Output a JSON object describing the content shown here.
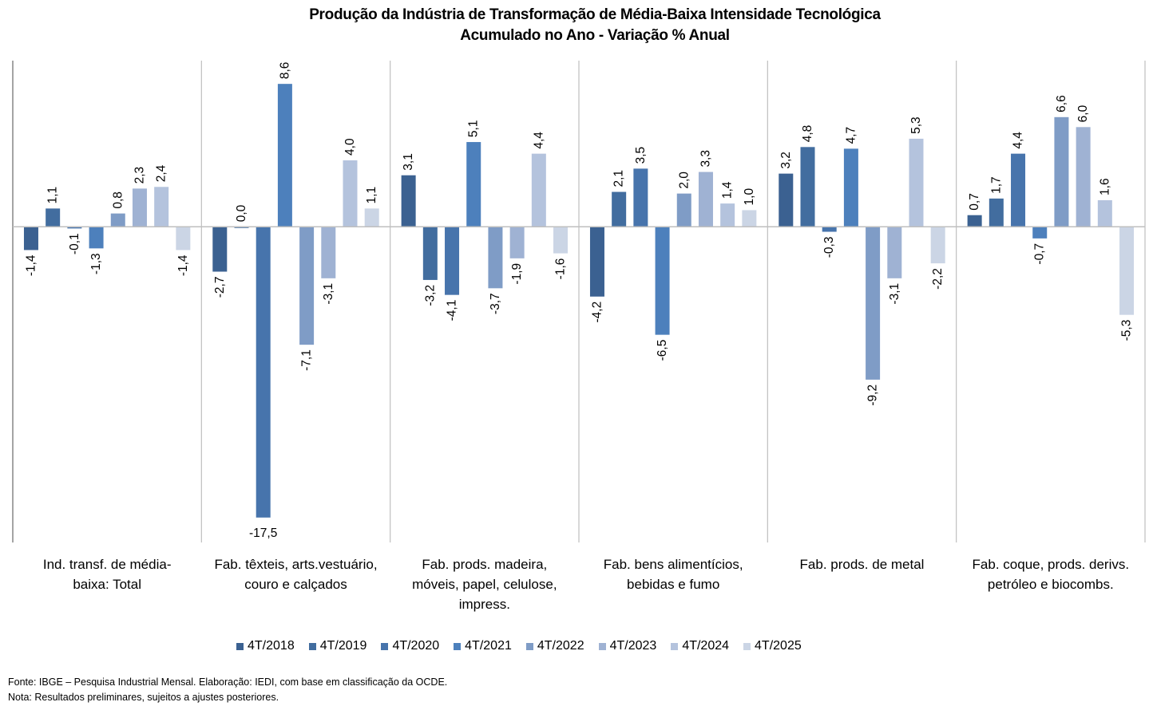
{
  "chart_data": {
    "type": "bar",
    "title": "Produção da Indústria de Transformação de Média-Baixa Intensidade Tecnológica",
    "subtitle": "Acumulado no Ano - Variação % Anual",
    "xlabel": "",
    "ylabel": "",
    "ylim": [
      -19,
      10
    ],
    "grid": false,
    "legend_position": "bottom",
    "categories": [
      [
        "Ind. transf. de média-",
        "baixa: Total"
      ],
      [
        "Fab. têxteis, arts.vestuário,",
        "couro e calçados"
      ],
      [
        "Fab. prods. madeira,",
        "móveis, papel, celulose,",
        "impress."
      ],
      [
        "Fab. bens alimentícios,",
        "bebidas e fumo"
      ],
      [
        "Fab. prods. de metal"
      ],
      [
        "Fab. coque, prods. derivs.",
        "petróleo e biocombs."
      ]
    ],
    "series": [
      {
        "name": "4T/2018",
        "color": "#3B6191",
        "values": [
          -1.4,
          -2.7,
          3.1,
          -4.2,
          3.2,
          0.7
        ]
      },
      {
        "name": "4T/2019",
        "color": "#426D9F",
        "values": [
          1.1,
          0.0,
          -3.2,
          2.1,
          4.8,
          1.7
        ]
      },
      {
        "name": "4T/2020",
        "color": "#4774AC",
        "values": [
          -0.1,
          -17.5,
          -4.1,
          3.5,
          -0.3,
          4.4
        ]
      },
      {
        "name": "4T/2021",
        "color": "#4D80BC",
        "values": [
          -1.3,
          8.6,
          5.1,
          -6.5,
          4.7,
          -0.7
        ]
      },
      {
        "name": "4T/2022",
        "color": "#7F9CC6",
        "values": [
          0.8,
          -7.1,
          -3.7,
          2.0,
          -9.2,
          6.6
        ]
      },
      {
        "name": "4T/2023",
        "color": "#9FB2D3",
        "values": [
          2.3,
          -3.1,
          -1.9,
          3.3,
          -3.1,
          6.0
        ]
      },
      {
        "name": "4T/2024",
        "color": "#B4C3DD",
        "values": [
          2.4,
          4.0,
          4.4,
          1.4,
          5.3,
          1.6
        ]
      },
      {
        "name": "4T/2025",
        "color": "#CBD5E5",
        "values": [
          -1.4,
          1.1,
          -1.6,
          1.0,
          -2.2,
          -5.3
        ]
      }
    ],
    "value_format": "decimal-comma-1"
  },
  "footer": {
    "source": "Fonte: IBGE – Pesquisa Industrial Mensal. Elaboração: IEDI, com base em classificação da OCDE.",
    "note": "Nota: Resultados preliminares, sujeitos a ajustes posteriores."
  }
}
